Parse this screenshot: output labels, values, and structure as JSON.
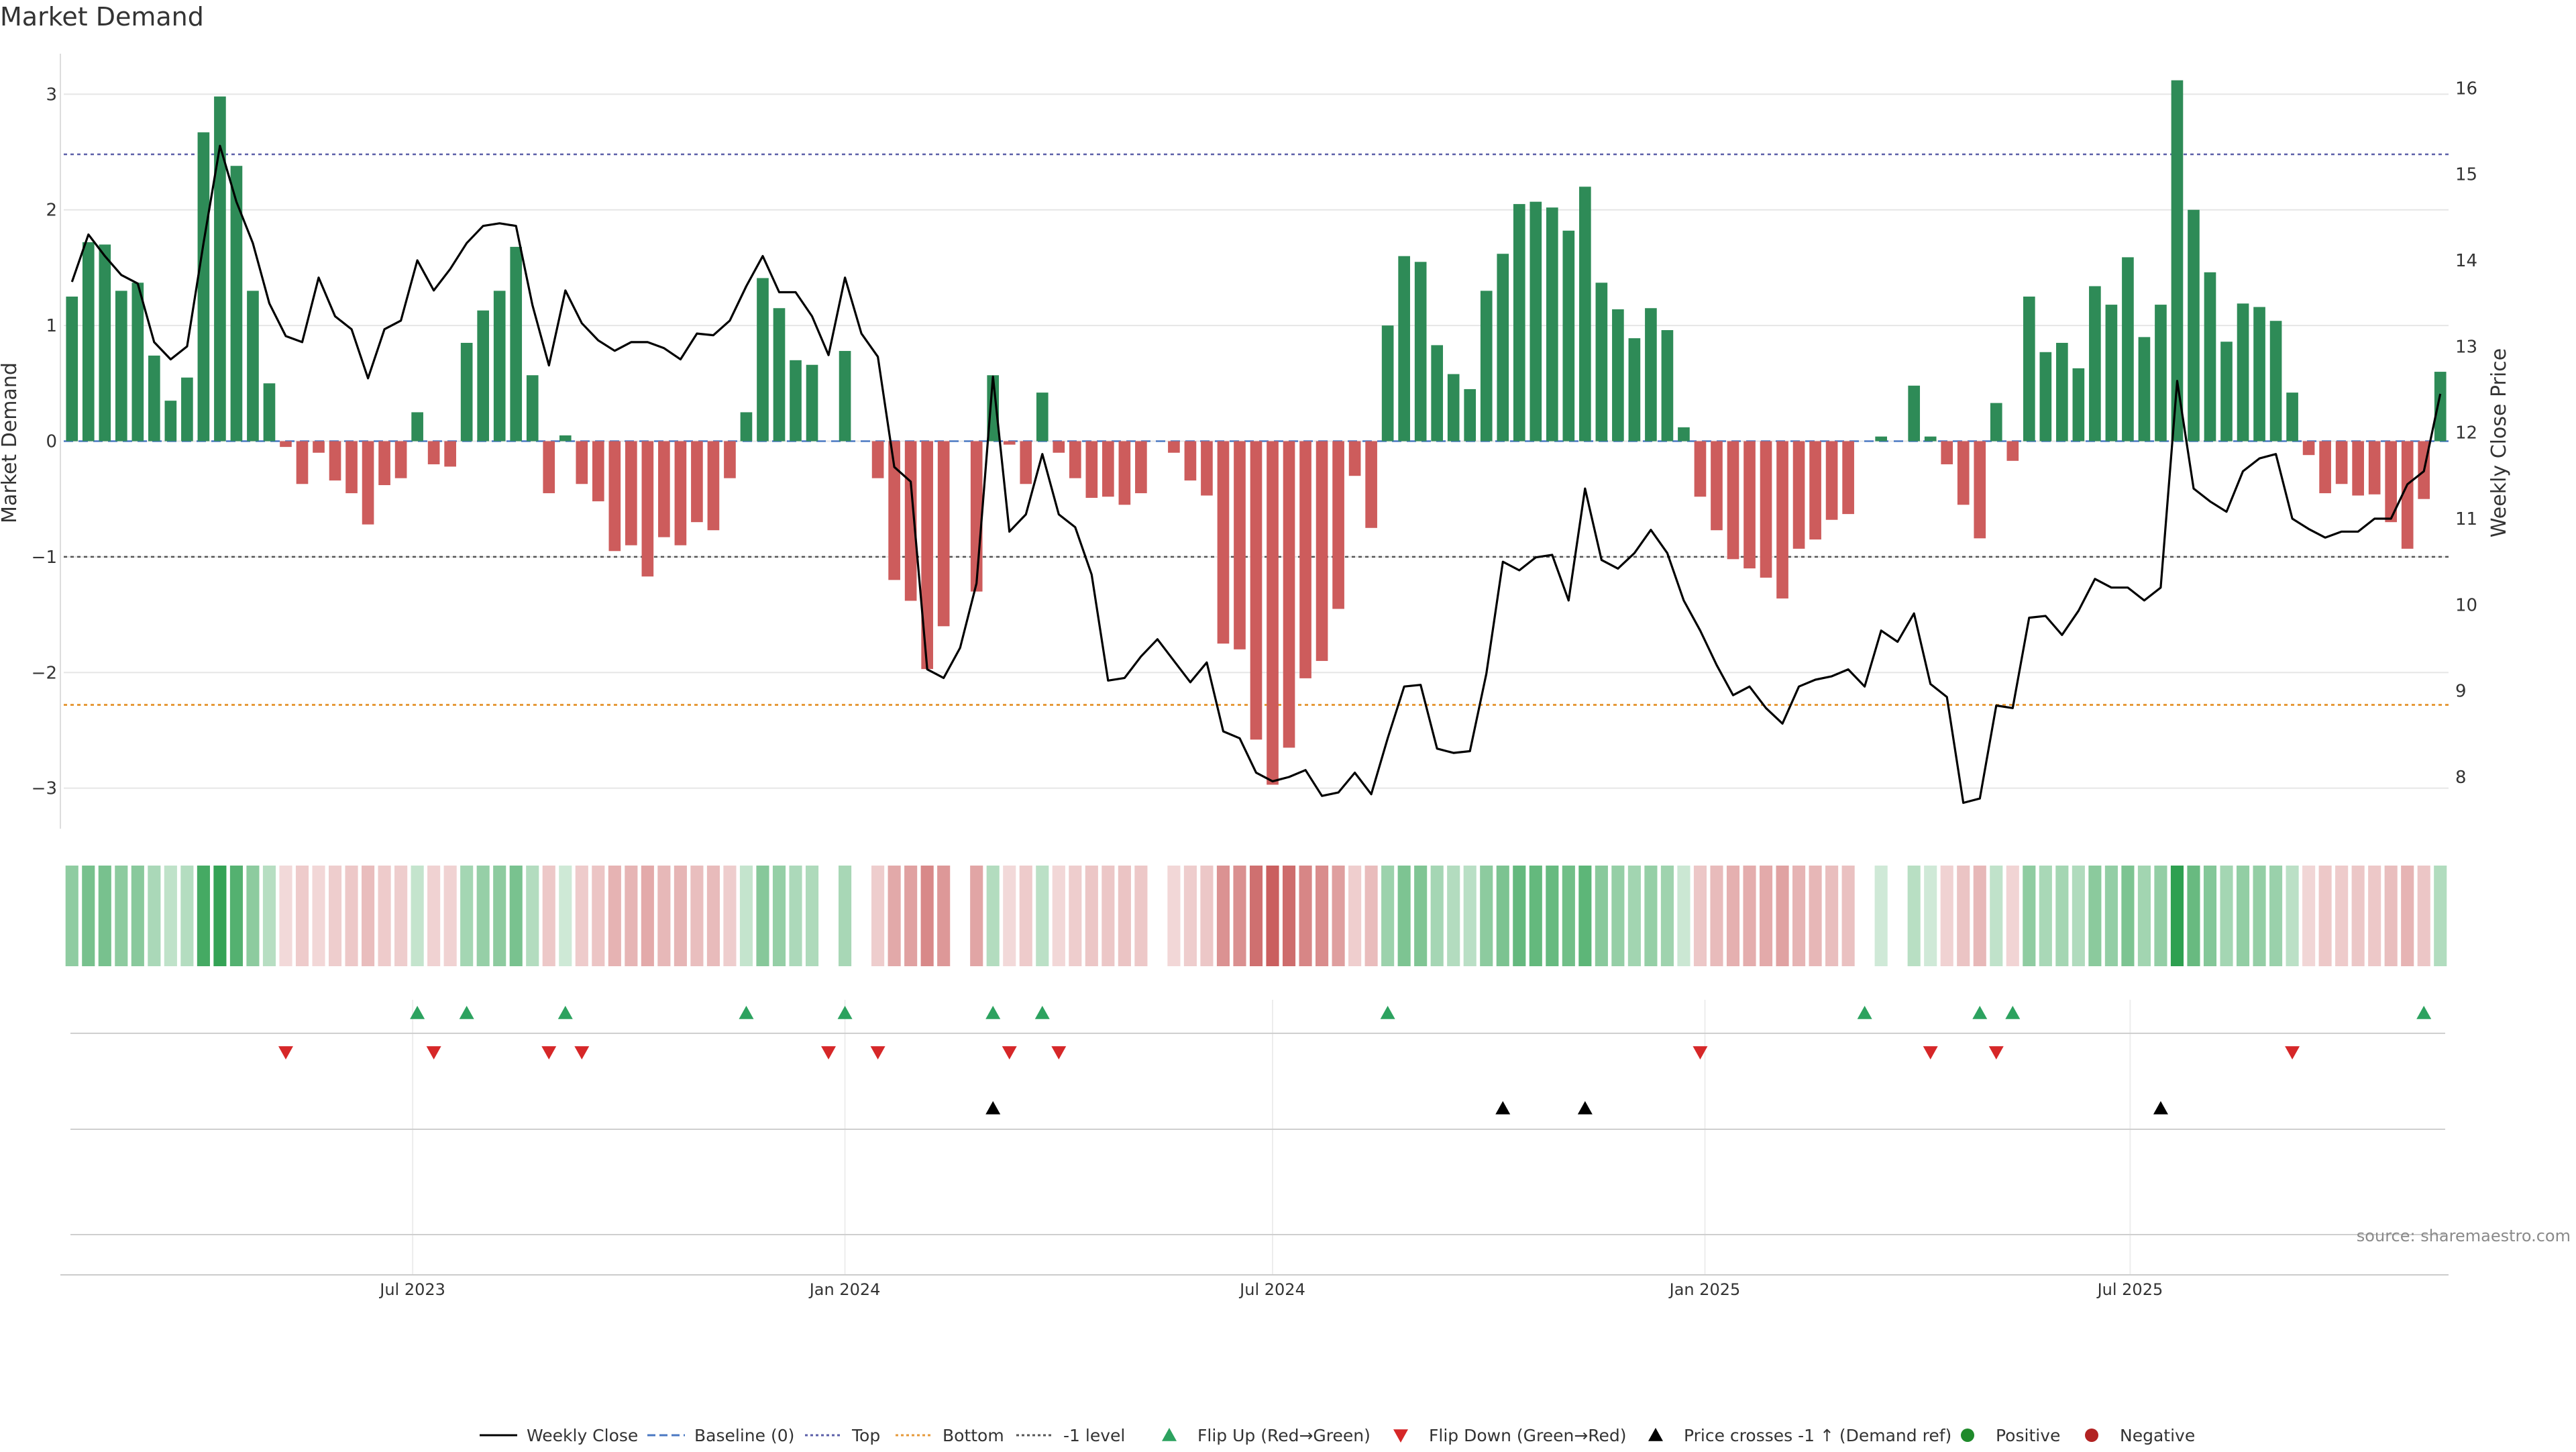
{
  "title": "Market Demand",
  "source_note": "source: sharemaestro.com",
  "colors": {
    "positive": "#2e8b57",
    "negative": "#cd5c5c",
    "price_line": "#000000",
    "top_line": "#5b5fa8",
    "bottom_line": "#e69a3a",
    "minus1_line": "#555555",
    "flip_up": "#2ca25f",
    "flip_down": "#d62728",
    "cross": "#000000",
    "grid": "#e6e6e6",
    "axis_text": "#333333"
  },
  "legend": [
    {
      "label": "Weekly Close",
      "marker": "line",
      "color": "#000000"
    },
    {
      "label": "Baseline (0)",
      "marker": "dash",
      "color": "#4a78c2"
    },
    {
      "label": "Top",
      "marker": "dot",
      "color": "#5b5fa8"
    },
    {
      "label": "Bottom",
      "marker": "dot",
      "color": "#e69a3a"
    },
    {
      "label": "-1 level",
      "marker": "dot",
      "color": "#555555"
    },
    {
      "label": "Flip Up (Red→Green)",
      "marker": "tri-up",
      "color": "#2ca25f"
    },
    {
      "label": "Flip Down (Green→Red)",
      "marker": "tri-down",
      "color": "#d62728"
    },
    {
      "label": "Price crosses -1 ↑ (Demand ref)",
      "marker": "tri-up",
      "color": "#000000"
    },
    {
      "label": "Positive",
      "marker": "circle",
      "color": "#1f8a2b"
    },
    {
      "label": "Negative",
      "marker": "circle",
      "color": "#b22222"
    }
  ],
  "chart_data": {
    "type": "bar",
    "ylabel": "Market Demand",
    "y2label": "Weekly Close Price",
    "ylim": [
      -3.35,
      3.35
    ],
    "y2lim": [
      7.4,
      16.4
    ],
    "yticks": [
      -3,
      -2,
      -1,
      0,
      1,
      2,
      3
    ],
    "yticklabels": [
      "−3",
      "−2",
      "−1",
      "0",
      "1",
      "2",
      "3"
    ],
    "y2ticks": [
      8,
      9,
      10,
      11,
      12,
      13,
      14,
      15,
      16
    ],
    "x_start": "2023-02-06",
    "x_step_days": 7,
    "xticks": [
      {
        "date": "2023-07-01",
        "label": "Jul 2023"
      },
      {
        "date": "2024-01-01",
        "label": "Jan 2024"
      },
      {
        "date": "2024-07-01",
        "label": "Jul 2024"
      },
      {
        "date": "2025-01-01",
        "label": "Jan 2025"
      },
      {
        "date": "2025-07-01",
        "label": "Jul 2025"
      }
    ],
    "top_level": 2.48,
    "bottom_level": -2.28,
    "minus1_level": -1.0,
    "demand": [
      1.25,
      1.72,
      1.7,
      1.3,
      1.37,
      0.74,
      0.35,
      0.55,
      2.67,
      2.98,
      2.38,
      1.3,
      0.5,
      -0.05,
      -0.37,
      -0.1,
      -0.34,
      -0.45,
      -0.72,
      -0.38,
      -0.32,
      0.25,
      -0.2,
      -0.22,
      0.85,
      1.13,
      1.3,
      1.68,
      0.57,
      -0.45,
      0.05,
      -0.37,
      -0.52,
      -0.95,
      -0.9,
      -1.17,
      -0.83,
      -0.9,
      -0.7,
      -0.77,
      -0.32,
      0.25,
      1.41,
      1.15,
      0.7,
      0.66,
      0.0,
      0.78,
      0.0,
      -0.32,
      -1.2,
      -1.38,
      -1.97,
      -1.6,
      0.0,
      -1.3,
      0.57,
      -0.03,
      -0.37,
      0.42,
      -0.1,
      -0.32,
      -0.49,
      -0.48,
      -0.55,
      -0.45,
      0.0,
      -0.1,
      -0.34,
      -0.47,
      -1.75,
      -1.8,
      -2.58,
      -2.97,
      -2.65,
      -2.05,
      -1.9,
      -1.45,
      -0.3,
      -0.75,
      1.0,
      1.6,
      1.55,
      0.83,
      0.58,
      0.45,
      1.3,
      1.62,
      2.05,
      2.07,
      2.02,
      1.82,
      2.2,
      1.37,
      1.14,
      0.89,
      1.15,
      0.96,
      0.12,
      -0.48,
      -0.77,
      -1.02,
      -1.1,
      -1.18,
      -1.36,
      -0.93,
      -0.85,
      -0.68,
      -0.63,
      0.0,
      0.04,
      0.0,
      0.48,
      0.04,
      -0.2,
      -0.55,
      -0.84,
      0.33,
      -0.17,
      1.25,
      0.77,
      0.85,
      0.63,
      1.34,
      1.18,
      1.59,
      0.9,
      1.18,
      3.12,
      2.0,
      1.46,
      0.86,
      1.19,
      1.16,
      1.04,
      0.42,
      -0.12,
      -0.45,
      -0.37,
      -0.47,
      -0.46,
      -0.7,
      -0.93,
      -0.5,
      0.6
    ],
    "price": [
      13.75,
      14.3,
      14.05,
      13.83,
      13.73,
      13.05,
      12.85,
      13.0,
      14.2,
      15.33,
      14.68,
      14.2,
      13.5,
      13.12,
      13.05,
      13.8,
      13.35,
      13.2,
      12.63,
      13.2,
      13.3,
      14.0,
      13.65,
      13.9,
      14.2,
      14.4,
      14.43,
      14.4,
      13.48,
      12.78,
      13.65,
      13.27,
      13.07,
      12.95,
      13.05,
      13.05,
      12.98,
      12.85,
      13.15,
      13.13,
      13.3,
      13.7,
      14.05,
      13.63,
      13.63,
      13.35,
      12.9,
      13.8,
      13.15,
      12.88,
      11.6,
      11.43,
      9.25,
      9.15,
      9.5,
      10.25,
      12.65,
      10.85,
      11.05,
      11.75,
      11.05,
      10.9,
      10.35,
      9.12,
      9.15,
      9.4,
      9.6,
      9.35,
      9.1,
      9.33,
      8.53,
      8.45,
      8.05,
      7.95,
      8.0,
      8.08,
      7.78,
      7.82,
      8.05,
      7.8,
      8.45,
      9.05,
      9.07,
      8.33,
      8.28,
      8.3,
      9.2,
      10.5,
      10.4,
      10.55,
      10.58,
      10.05,
      11.35,
      10.52,
      10.42,
      10.6,
      10.87,
      10.6,
      10.05,
      9.7,
      9.3,
      8.95,
      9.05,
      8.8,
      8.62,
      9.05,
      9.13,
      9.17,
      9.25,
      9.05,
      9.7,
      9.57,
      9.9,
      9.08,
      8.93,
      7.7,
      7.75,
      8.83,
      8.8,
      9.85,
      9.87,
      9.65,
      9.93,
      10.3,
      10.2,
      10.2,
      10.05,
      10.2,
      12.6,
      11.35,
      11.2,
      11.08,
      11.55,
      11.7,
      11.75,
      11.0,
      10.88,
      10.78,
      10.85,
      10.85,
      11.0,
      11.0,
      11.4,
      11.55,
      12.45
    ],
    "flip_up_weeks": [
      21,
      24,
      30,
      41,
      47,
      56,
      59,
      80,
      109,
      116,
      118,
      143
    ],
    "flip_down_weeks": [
      13,
      22,
      29,
      31,
      46,
      49,
      57,
      60,
      99,
      113,
      117,
      135
    ],
    "cross_weeks": [
      56,
      87,
      92,
      127
    ]
  }
}
